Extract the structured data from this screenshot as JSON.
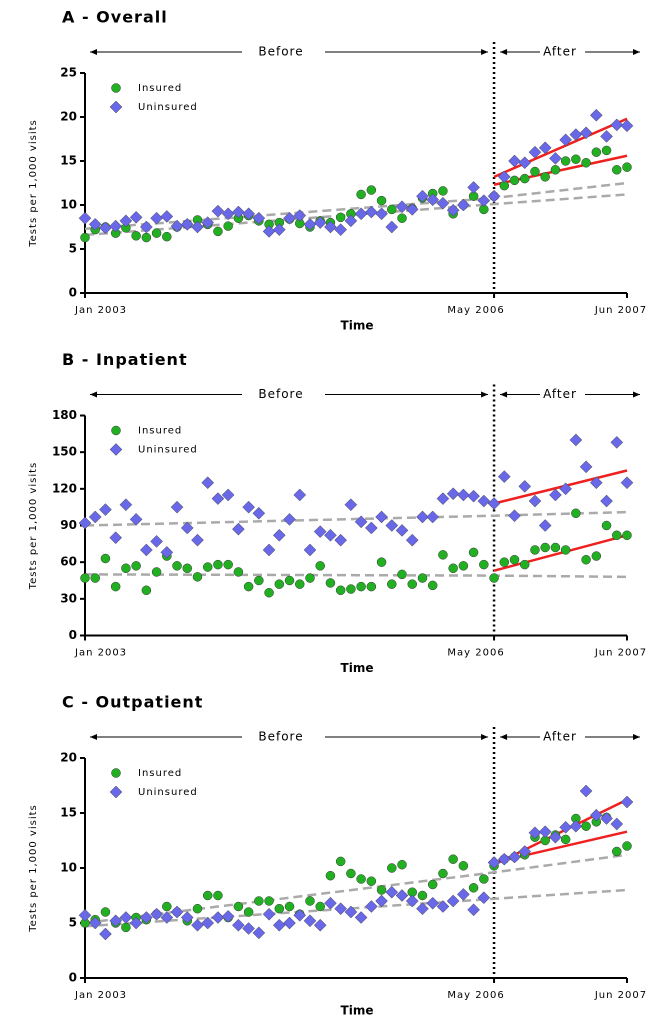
{
  "chart_data": [
    {
      "type": "scatter",
      "title": "A - Overall",
      "x_label": "Time",
      "y_label": "Tests per 1,000 visits",
      "annotations": [
        "Before",
        "After"
      ],
      "categories": [
        "Jan 2003",
        null,
        null,
        null,
        null,
        null,
        null,
        null,
        null,
        null,
        null,
        null,
        null,
        null,
        null,
        null,
        null,
        null,
        null,
        null,
        null,
        null,
        null,
        null,
        null,
        null,
        null,
        null,
        null,
        null,
        null,
        null,
        null,
        null,
        null,
        null,
        null,
        null,
        null,
        null,
        "May 2006",
        null,
        null,
        null,
        null,
        null,
        null,
        null,
        null,
        null,
        null,
        null,
        null,
        "Jun 2007"
      ],
      "ylim": [
        0,
        25
      ],
      "yticks": [
        0,
        5,
        10,
        15,
        20,
        25
      ],
      "divider": "May 2006",
      "series": [
        {
          "name": "Insured",
          "color": "#22b022",
          "marker": "circle",
          "values": [
            6.3,
            7.2,
            7.5,
            6.8,
            7.4,
            6.5,
            6.3,
            6.8,
            6.4,
            7.5,
            7.8,
            8.3,
            7.8,
            7.0,
            7.6,
            8.5,
            8.8,
            8.2,
            7.8,
            8.0,
            8.4,
            7.9,
            7.5,
            8.2,
            8.0,
            8.6,
            9.0,
            11.2,
            11.7,
            10.5,
            9.5,
            8.5,
            9.6,
            10.8,
            11.3,
            11.6,
            9.0,
            10.0,
            11.0,
            9.5,
            11.0,
            12.2,
            12.8,
            13.0,
            13.8,
            13.2,
            14.0,
            15.0,
            15.2,
            14.8,
            16.0,
            16.2,
            14.0,
            14.3
          ]
        },
        {
          "name": "Uninsured",
          "color": "#6868e8",
          "marker": "diamond",
          "values": [
            8.5,
            7.8,
            7.4,
            7.6,
            8.2,
            8.6,
            7.5,
            8.5,
            8.7,
            7.6,
            7.8,
            7.5,
            8.0,
            9.3,
            9.0,
            9.2,
            9.0,
            8.5,
            7.0,
            7.2,
            8.5,
            8.8,
            7.8,
            8.0,
            7.5,
            7.2,
            8.2,
            9.0,
            9.2,
            9.0,
            7.5,
            9.8,
            9.5,
            11.0,
            10.6,
            10.2,
            9.4,
            10.0,
            12.0,
            10.5,
            11.0,
            13.2,
            15.0,
            14.8,
            16.0,
            16.5,
            15.3,
            17.4,
            18.0,
            18.2,
            20.2,
            17.8,
            19.1,
            19.0
          ]
        }
      ],
      "trends": [
        {
          "color": "#ee2020",
          "dashed": false,
          "x": [
            "May 2006",
            "Jun 2007"
          ],
          "values": [
            13.2,
            19.8
          ]
        },
        {
          "color": "#ee2020",
          "dashed": false,
          "x": [
            "May 2006",
            "Jun 2007"
          ],
          "values": [
            12.3,
            15.6
          ]
        },
        {
          "color": "#aaaaaa",
          "dashed": true,
          "x": [
            "Jan 2003",
            "May 2006",
            "Jun 2007"
          ],
          "values": [
            7.3,
            10.8,
            12.5
          ]
        },
        {
          "color": "#aaaaaa",
          "dashed": true,
          "x": [
            "Jan 2003",
            "May 2006",
            "Jun 2007"
          ],
          "values": [
            6.6,
            10.1,
            11.2
          ]
        }
      ]
    },
    {
      "type": "scatter",
      "title": "B - Inpatient",
      "x_label": "Time",
      "y_label": "Tests per 1,000 visits",
      "annotations": [
        "Before",
        "After"
      ],
      "categories": [
        "Jan 2003",
        null,
        null,
        null,
        null,
        null,
        null,
        null,
        null,
        null,
        null,
        null,
        null,
        null,
        null,
        null,
        null,
        null,
        null,
        null,
        null,
        null,
        null,
        null,
        null,
        null,
        null,
        null,
        null,
        null,
        null,
        null,
        null,
        null,
        null,
        null,
        null,
        null,
        null,
        null,
        "May 2006",
        null,
        null,
        null,
        null,
        null,
        null,
        null,
        null,
        null,
        null,
        null,
        null,
        "Jun 2007"
      ],
      "ylim": [
        0,
        180
      ],
      "yticks": [
        0,
        30,
        60,
        90,
        120,
        150,
        180
      ],
      "divider": "May 2006",
      "series": [
        {
          "name": "Insured",
          "color": "#22b022",
          "marker": "circle",
          "values": [
            47,
            47,
            63,
            40,
            55,
            57,
            37,
            52,
            65,
            57,
            55,
            48,
            56,
            58,
            58,
            52,
            40,
            45,
            35,
            42,
            45,
            42,
            47,
            57,
            43,
            37,
            38,
            40,
            40,
            60,
            42,
            50,
            42,
            47,
            41,
            66,
            55,
            57,
            68,
            58,
            47,
            60,
            62,
            58,
            70,
            72,
            72,
            70,
            100,
            62,
            65,
            90,
            82,
            82
          ]
        },
        {
          "name": "Uninsured",
          "color": "#6868e8",
          "marker": "diamond",
          "values": [
            92,
            97,
            103,
            80,
            107,
            95,
            70,
            77,
            68,
            105,
            88,
            78,
            125,
            112,
            115,
            87,
            105,
            100,
            70,
            82,
            95,
            115,
            70,
            85,
            82,
            78,
            107,
            93,
            88,
            97,
            90,
            86,
            78,
            97,
            97,
            112,
            116,
            115,
            114,
            110,
            108,
            130,
            98,
            122,
            110,
            90,
            115,
            120,
            160,
            138,
            125,
            110,
            158,
            125
          ]
        }
      ],
      "trends": [
        {
          "color": "#ee2020",
          "dashed": false,
          "x": [
            "May 2006",
            "Jun 2007"
          ],
          "values": [
            108,
            135
          ]
        },
        {
          "color": "#ee2020",
          "dashed": false,
          "x": [
            "May 2006",
            "Jun 2007"
          ],
          "values": [
            53,
            82
          ]
        },
        {
          "color": "#aaaaaa",
          "dashed": true,
          "x": [
            "Jan 2003",
            "May 2006",
            "Jun 2007"
          ],
          "values": [
            90,
            98,
            101
          ]
        },
        {
          "color": "#aaaaaa",
          "dashed": true,
          "x": [
            "Jan 2003",
            "May 2006",
            "Jun 2007"
          ],
          "values": [
            50,
            49,
            48
          ]
        }
      ]
    },
    {
      "type": "scatter",
      "title": "C - Outpatient",
      "x_label": "Time",
      "y_label": "Tests per 1,000 visits",
      "annotations": [
        "Before",
        "After"
      ],
      "categories": [
        "Jan 2003",
        null,
        null,
        null,
        null,
        null,
        null,
        null,
        null,
        null,
        null,
        null,
        null,
        null,
        null,
        null,
        null,
        null,
        null,
        null,
        null,
        null,
        null,
        null,
        null,
        null,
        null,
        null,
        null,
        null,
        null,
        null,
        null,
        null,
        null,
        null,
        null,
        null,
        null,
        null,
        "May 2006",
        null,
        null,
        null,
        null,
        null,
        null,
        null,
        null,
        null,
        null,
        null,
        null,
        "Jun 2007"
      ],
      "ylim": [
        0,
        20
      ],
      "yticks": [
        0,
        5,
        10,
        15,
        20
      ],
      "divider": "May 2006",
      "series": [
        {
          "name": "Insured",
          "color": "#22b022",
          "marker": "circle",
          "values": [
            5.0,
            5.3,
            6.0,
            5.0,
            4.6,
            5.5,
            5.3,
            5.8,
            6.5,
            6.0,
            5.2,
            6.3,
            7.5,
            7.5,
            5.5,
            6.5,
            6.0,
            7.0,
            7.0,
            6.3,
            6.5,
            5.8,
            7.0,
            6.5,
            9.3,
            10.6,
            9.5,
            9.0,
            8.8,
            8.0,
            10.0,
            10.3,
            7.8,
            7.5,
            8.5,
            9.5,
            10.8,
            10.2,
            8.2,
            9.0,
            10.2,
            10.8,
            11.0,
            11.2,
            12.8,
            12.5,
            13.0,
            12.6,
            14.5,
            13.8,
            14.2,
            14.6,
            11.5,
            12.0
          ]
        },
        {
          "name": "Uninsured",
          "color": "#6868e8",
          "marker": "diamond",
          "values": [
            5.7,
            5.0,
            4.0,
            5.2,
            5.5,
            5.0,
            5.5,
            5.8,
            5.5,
            6.0,
            5.5,
            4.8,
            5.0,
            5.5,
            5.6,
            4.8,
            4.5,
            4.1,
            5.8,
            4.8,
            5.0,
            5.7,
            5.2,
            4.8,
            6.8,
            6.3,
            6.0,
            5.5,
            6.5,
            7.0,
            7.8,
            7.5,
            7.0,
            6.3,
            6.8,
            6.5,
            7.0,
            7.6,
            6.2,
            7.3,
            10.5,
            10.8,
            11.0,
            11.5,
            13.2,
            13.3,
            12.8,
            13.7,
            13.8,
            17.0,
            14.8,
            14.5,
            14.0,
            16.0
          ]
        }
      ],
      "trends": [
        {
          "color": "#ee2020",
          "dashed": false,
          "x": [
            "May 2006",
            "Jun 2007"
          ],
          "values": [
            10.3,
            16.2
          ]
        },
        {
          "color": "#ee2020",
          "dashed": false,
          "x": [
            "May 2006",
            "Jun 2007"
          ],
          "values": [
            10.5,
            13.3
          ]
        },
        {
          "color": "#aaaaaa",
          "dashed": true,
          "x": [
            "Jan 2003",
            "May 2006",
            "Jun 2007"
          ],
          "values": [
            5.0,
            9.6,
            11.2
          ]
        },
        {
          "color": "#aaaaaa",
          "dashed": true,
          "x": [
            "Jan 2003",
            "May 2006",
            "Jun 2007"
          ],
          "values": [
            4.7,
            7.2,
            8.0
          ]
        }
      ]
    }
  ]
}
